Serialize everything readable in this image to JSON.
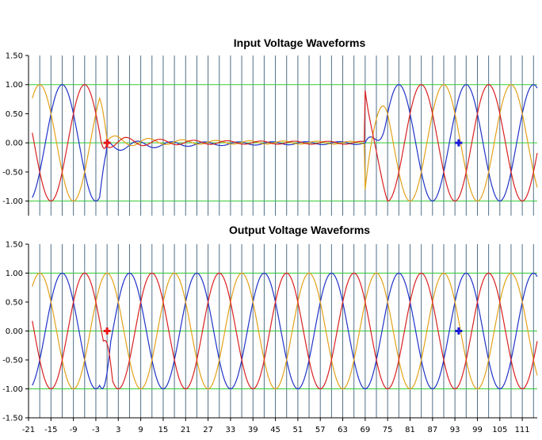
{
  "colors": {
    "vgrid": "#4f6f88",
    "hgrid": "#33cc33",
    "axis": "#000000",
    "phase_a": "#1f33c8",
    "phase_b": "#e3a11a",
    "phase_c": "#d92020",
    "marker_start": "#e81818",
    "marker_end": "#1a1ad8"
  },
  "chart_data": [
    {
      "type": "line",
      "title": "Input Voltage Waveforms",
      "xlim": [
        -21,
        115
      ],
      "ylim": [
        -1.25,
        1.5
      ],
      "y_ticks": [
        -1.0,
        -0.5,
        0.0,
        0.5,
        1.0,
        1.5
      ],
      "y_tick_labels": [
        "-1.00",
        "-0.50",
        "0.00",
        "0.50",
        "1.00",
        "1.50"
      ],
      "horizontal_grid": [
        -1.0,
        0.0,
        1.0
      ],
      "vertical_grid_start": -21,
      "vertical_grid_step": 3,
      "period": 18,
      "fault_window": [
        0,
        69
      ],
      "series": [
        {
          "phase_offset_deg": 120,
          "color_key": "phase_a"
        },
        {
          "phase_offset_deg": 0,
          "color_key": "phase_b"
        },
        {
          "phase_offset_deg": -120,
          "color_key": "phase_c"
        }
      ],
      "markers": [
        {
          "x": 0,
          "y": 0.0,
          "color_key": "marker_start"
        },
        {
          "x": 94,
          "y": 0.0,
          "color_key": "marker_end"
        }
      ]
    },
    {
      "type": "line",
      "title": "Output Voltage Waveforms",
      "xlim": [
        -21,
        115
      ],
      "ylim": [
        -1.5,
        1.5
      ],
      "y_ticks": [
        -1.5,
        -1.0,
        -0.5,
        0.0,
        0.5,
        1.0,
        1.5
      ],
      "y_tick_labels": [
        "-1.50",
        "-1.00",
        "-0.50",
        "0.00",
        "0.50",
        "1.00",
        "1.50"
      ],
      "x_ticks": [
        -21,
        -15,
        -9,
        -3,
        3,
        9,
        15,
        21,
        27,
        33,
        39,
        45,
        51,
        57,
        63,
        69,
        75,
        81,
        87,
        93,
        99,
        105,
        111
      ],
      "x_tick_labels": [
        "-21",
        "-15",
        "-9",
        "-3",
        "3",
        "9",
        "15",
        "21",
        "27",
        "33",
        "39",
        "45",
        "51",
        "57",
        "63",
        "69",
        "75",
        "81",
        "87",
        "93",
        "99",
        "105",
        "111"
      ],
      "horizontal_grid": [
        -1.0,
        0.0,
        1.0
      ],
      "vertical_grid_start": -21,
      "vertical_grid_step": 3,
      "period": 18,
      "series": [
        {
          "phase_offset_deg": 120,
          "color_key": "phase_a"
        },
        {
          "phase_offset_deg": 0,
          "color_key": "phase_b"
        },
        {
          "phase_offset_deg": -120,
          "color_key": "phase_c"
        }
      ],
      "markers": [
        {
          "x": 0,
          "y": 0.0,
          "color_key": "marker_start"
        },
        {
          "x": 94,
          "y": 0.0,
          "color_key": "marker_end"
        }
      ]
    }
  ]
}
